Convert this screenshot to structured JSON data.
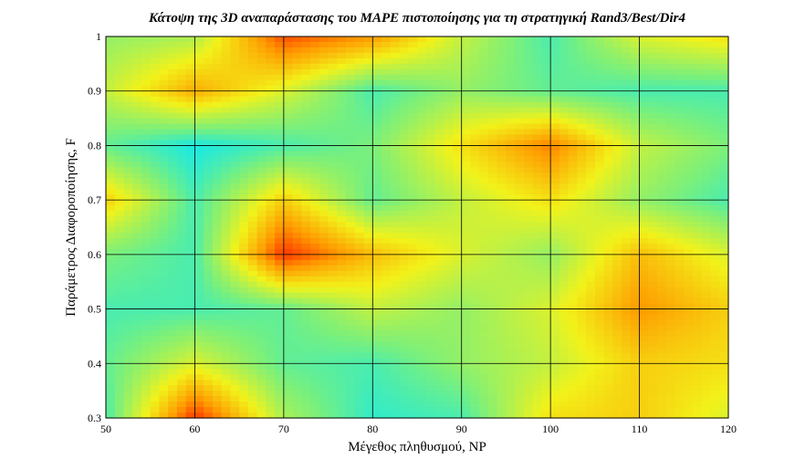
{
  "chart_data": {
    "type": "heatmap",
    "title": "Κάτοψη της 3D αναπαράστασης του MAPE πιστοποίησης για τη στρατηγική Rand3/Best/Dir4",
    "xlabel": "Μέγεθος πληθυσμού, NP",
    "ylabel": "Παράμετρος Διαφοροποίησης, F",
    "x": [
      50,
      60,
      70,
      80,
      90,
      100,
      110,
      120
    ],
    "y": [
      0.3,
      0.4,
      0.5,
      0.6,
      0.7,
      0.8,
      0.9,
      1.0
    ],
    "xlim": [
      50,
      120
    ],
    "ylim": [
      0.3,
      1.0
    ],
    "xticks": [
      "50",
      "60",
      "70",
      "80",
      "90",
      "100",
      "110",
      "120"
    ],
    "yticks": [
      "0.3",
      "0.4",
      "0.5",
      "0.6",
      "0.7",
      "0.8",
      "0.9",
      "1"
    ],
    "grid": true,
    "colormap": [
      "#00e8ff",
      "#7cf07a",
      "#f2f21a",
      "#ff9900",
      "#ff1a00"
    ],
    "z": [
      [
        0.15,
        0.95,
        0.35,
        0.1,
        0.15,
        0.55,
        0.6,
        0.45
      ],
      [
        0.2,
        0.45,
        0.2,
        0.15,
        0.3,
        0.4,
        0.6,
        0.55
      ],
      [
        0.15,
        0.15,
        0.2,
        0.4,
        0.3,
        0.45,
        0.75,
        0.6
      ],
      [
        0.25,
        0.15,
        0.95,
        0.65,
        0.45,
        0.3,
        0.65,
        0.45
      ],
      [
        0.6,
        0.15,
        0.6,
        0.2,
        0.4,
        0.55,
        0.3,
        0.15
      ],
      [
        0.2,
        0.05,
        0.15,
        0.25,
        0.55,
        0.8,
        0.4,
        0.25
      ],
      [
        0.4,
        0.7,
        0.45,
        0.15,
        0.3,
        0.2,
        0.15,
        0.15
      ],
      [
        0.3,
        0.35,
        0.9,
        0.75,
        0.4,
        0.15,
        0.45,
        0.55
      ]
    ]
  }
}
